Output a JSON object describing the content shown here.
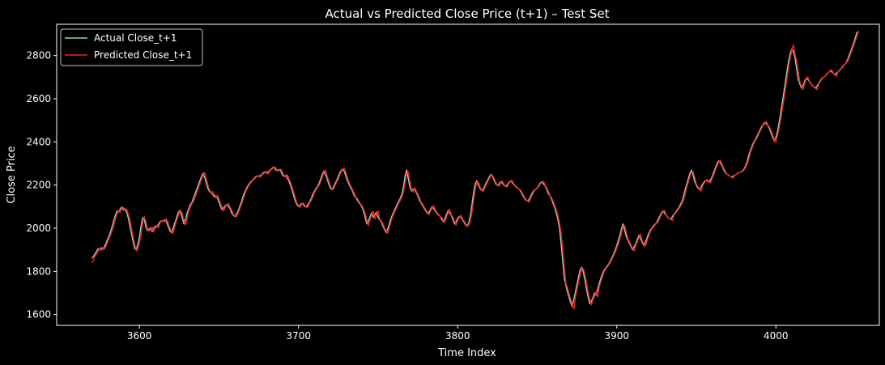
{
  "chart_data": {
    "type": "line",
    "title": "Actual vs Predicted Close Price (t+1) – Test Set",
    "xlabel": "Time Index",
    "ylabel": "Close Price",
    "xlim": [
      3548,
      4065
    ],
    "ylim": [
      1550,
      2945
    ],
    "x_ticks": [
      3600,
      3700,
      3800,
      3900,
      4000
    ],
    "y_ticks": [
      1600,
      1800,
      2000,
      2200,
      2400,
      2600,
      2800
    ],
    "x_tick_labels": [
      "3600",
      "3700",
      "3800",
      "3900",
      "4000"
    ],
    "y_tick_labels": [
      "1600",
      "1800",
      "2000",
      "2200",
      "2400",
      "2600",
      "2800"
    ],
    "grid": false,
    "legend_position": "top-left",
    "series": [
      {
        "name": "Actual Close_t+1",
        "color": "#8dd3c7",
        "x_start": 3570,
        "values": [
          1862,
          1868,
          1880,
          1892,
          1905,
          1900,
          1910,
          1902,
          1915,
          1930,
          1950,
          1965,
          1988,
          2012,
          2040,
          2062,
          2080,
          2075,
          2090,
          2098,
          2085,
          2090,
          2072,
          2048,
          2010,
          1975,
          1940,
          1905,
          1902,
          1925,
          1960,
          2010,
          2048,
          2040,
          2010,
          1990,
          1995,
          2002,
          1985,
          2000,
          2010,
          2005,
          2020,
          2030,
          2035,
          2032,
          2040,
          2030,
          2010,
          1990,
          1980,
          1995,
          2020,
          2040,
          2065,
          2080,
          2070,
          2045,
          2020,
          2040,
          2072,
          2090,
          2110,
          2120,
          2140,
          2160,
          2180,
          2200,
          2220,
          2240,
          2255,
          2235,
          2210,
          2185,
          2170,
          2165,
          2158,
          2145,
          2150,
          2140,
          2120,
          2100,
          2085,
          2095,
          2105,
          2110,
          2100,
          2090,
          2070,
          2060,
          2055,
          2065,
          2080,
          2100,
          2120,
          2145,
          2165,
          2180,
          2195,
          2205,
          2215,
          2222,
          2230,
          2238,
          2242,
          2240,
          2245,
          2250,
          2258,
          2262,
          2255,
          2262,
          2268,
          2275,
          2282,
          2278,
          2268,
          2270,
          2272,
          2262,
          2245,
          2240,
          2245,
          2232,
          2218,
          2198,
          2175,
          2150,
          2125,
          2110,
          2100,
          2108,
          2115,
          2110,
          2100,
          2098,
          2112,
          2122,
          2138,
          2158,
          2172,
          2185,
          2195,
          2210,
          2230,
          2250,
          2265,
          2248,
          2228,
          2205,
          2185,
          2178,
          2192,
          2208,
          2222,
          2240,
          2258,
          2270,
          2275,
          2258,
          2235,
          2215,
          2200,
          2185,
          2170,
          2150,
          2142,
          2130,
          2118,
          2110,
          2095,
          2075,
          2045,
          2020,
          2035,
          2055,
          2072,
          2050,
          2065,
          2075,
          2050,
          2040,
          2030,
          2010,
          1995,
          1980,
          1995,
          2020,
          2045,
          2062,
          2078,
          2095,
          2110,
          2125,
          2140,
          2160,
          2195,
          2245,
          2270,
          2228,
          2190,
          2172,
          2182,
          2178,
          2165,
          2150,
          2130,
          2118,
          2105,
          2092,
          2080,
          2068,
          2075,
          2088,
          2100,
          2090,
          2080,
          2070,
          2060,
          2055,
          2040,
          2030,
          2045,
          2065,
          2082,
          2070,
          2060,
          2040,
          2020,
          2030,
          2045,
          2055,
          2050,
          2040,
          2028,
          2015,
          2010,
          2025,
          2060,
          2110,
          2165,
          2205,
          2220,
          2200,
          2185,
          2175,
          2180,
          2195,
          2212,
          2225,
          2240,
          2250,
          2238,
          2220,
          2205,
          2198,
          2205,
          2215,
          2210,
          2200,
          2195,
          2200,
          2210,
          2218,
          2215,
          2205,
          2198,
          2188,
          2185,
          2178,
          2165,
          2150,
          2140,
          2130,
          2125,
          2135,
          2150,
          2165,
          2175,
          2180,
          2188,
          2198,
          2210,
          2215,
          2205,
          2195,
          2180,
          2160,
          2150,
          2135,
          2115,
          2095,
          2070,
          2040,
          2000,
          1930,
          1850,
          1770,
          1735,
          1705,
          1680,
          1655,
          1638,
          1670,
          1705,
          1740,
          1775,
          1808,
          1820,
          1795,
          1760,
          1715,
          1680,
          1650,
          1662,
          1678,
          1700,
          1690,
          1720,
          1745,
          1768,
          1790,
          1805,
          1815,
          1825,
          1835,
          1850,
          1865,
          1880,
          1900,
          1920,
          1945,
          1970,
          2000,
          2020,
          1990,
          1960,
          1945,
          1930,
          1915,
          1900,
          1915,
          1930,
          1950,
          1968,
          1950,
          1935,
          1920,
          1935,
          1955,
          1975,
          1990,
          2000,
          2010,
          2018,
          2025,
          2040,
          2055,
          2070,
          2080,
          2070,
          2060,
          2050,
          2045,
          2040,
          2055,
          2065,
          2075,
          2085,
          2095,
          2110,
          2125,
          2150,
          2180,
          2205,
          2230,
          2255,
          2270,
          2245,
          2215,
          2200,
          2185,
          2178,
          2190,
          2205,
          2215,
          2222,
          2218,
          2215,
          2225,
          2240,
          2262,
          2280,
          2300,
          2312,
          2305,
          2290,
          2275,
          2260,
          2252,
          2248,
          2242,
          2238,
          2240,
          2245,
          2250,
          2255,
          2258,
          2260,
          2265,
          2275,
          2290,
          2310,
          2340,
          2360,
          2380,
          2398,
          2410,
          2425,
          2440,
          2455,
          2470,
          2480,
          2490,
          2485,
          2475,
          2460,
          2440,
          2420,
          2405,
          2420,
          2450,
          2490,
          2535,
          2580,
          2630,
          2680,
          2730,
          2775,
          2810,
          2830,
          2818,
          2790,
          2740,
          2690,
          2670,
          2650,
          2660,
          2680,
          2695,
          2690,
          2680,
          2670,
          2660,
          2655,
          2650,
          2660,
          2672,
          2685,
          2695,
          2700,
          2705,
          2715,
          2722,
          2730,
          2725,
          2718,
          2712,
          2718,
          2725,
          2732,
          2740,
          2750,
          2758,
          2765,
          2780,
          2800,
          2820,
          2840,
          2860,
          2885,
          2910
        ]
      },
      {
        "name": "Predicted Close_t+1",
        "color": "#ff1a1a",
        "x_start": 3570,
        "values": [
          1840,
          1850,
          1870,
          1880,
          1893,
          1903,
          1898,
          1907,
          1902,
          1918,
          1935,
          1955,
          1970,
          1992,
          2016,
          2045,
          2068,
          2082,
          2074,
          2092,
          2096,
          2082,
          2088,
          2068,
          2040,
          2000,
          1962,
          1928,
          1895,
          1900,
          1932,
          1970,
          2022,
          2055,
          2035,
          2002,
          1985,
          1998,
          2006,
          1982,
          2004,
          2012,
          2002,
          2024,
          2034,
          2036,
          2030,
          2044,
          2026,
          2005,
          1985,
          1975,
          2000,
          2028,
          2048,
          2072,
          2085,
          2065,
          2038,
          2015,
          2045,
          2080,
          2096,
          2115,
          2124,
          2145,
          2165,
          2186,
          2205,
          2226,
          2245,
          2258,
          2230,
          2202,
          2178,
          2166,
          2170,
          2160,
          2140,
          2154,
          2138,
          2115,
          2095,
          2080,
          2100,
          2110,
          2114,
          2096,
          2085,
          2064,
          2058,
          2052,
          2070,
          2088,
          2108,
          2128,
          2152,
          2172,
          2186,
          2200,
          2210,
          2220,
          2226,
          2234,
          2240,
          2245,
          2236,
          2248,
          2252,
          2262,
          2264,
          2250,
          2266,
          2272,
          2278,
          2285,
          2275,
          2264,
          2272,
          2274,
          2258,
          2240,
          2238,
          2248,
          2228,
          2212,
          2190,
          2166,
          2140,
          2118,
          2104,
          2096,
          2112,
          2118,
          2106,
          2095,
          2100,
          2118,
          2128,
          2145,
          2165,
          2178,
          2190,
          2200,
          2216,
          2238,
          2258,
          2270,
          2240,
          2220,
          2196,
          2180,
          2182,
          2198,
          2214,
          2228,
          2248,
          2264,
          2275,
          2278,
          2250,
          2228,
          2208,
          2194,
          2178,
          2162,
          2144,
          2138,
          2125,
          2112,
          2104,
          2088,
          2066,
          2035,
          2012,
          2042,
          2062,
          2078,
          2042,
          2070,
          2080,
          2044,
          2034,
          2022,
          2002,
          1988,
          1975,
          2002,
          2028,
          2052,
          2068,
          2085,
          2100,
          2116,
          2130,
          2146,
          2170,
          2208,
          2255,
          2262,
          2215,
          2180,
          2168,
          2188,
          2172,
          2158,
          2142,
          2122,
          2112,
          2098,
          2086,
          2074,
          2062,
          2080,
          2094,
          2104,
          2084,
          2074,
          2064,
          2054,
          2050,
          2034,
          2026,
          2052,
          2072,
          2088,
          2062,
          2052,
          2032,
          2014,
          2036,
          2050,
          2060,
          2044,
          2034,
          2022,
          2008,
          2016,
          2035,
          2075,
          2125,
          2178,
          2212,
          2214,
          2192,
          2178,
          2170,
          2186,
          2202,
          2218,
          2230,
          2246,
          2244,
          2230,
          2212,
          2200,
          2194,
          2210,
          2220,
          2204,
          2194,
          2190,
          2206,
          2215,
          2222,
          2210,
          2200,
          2192,
          2182,
          2180,
          2172,
          2158,
          2144,
          2134,
          2124,
          2120,
          2140,
          2156,
          2170,
          2180,
          2185,
          2194,
          2204,
          2216,
          2218,
          2198,
          2188,
          2172,
          2152,
          2142,
          2126,
          2106,
          2086,
          2060,
          2025,
          1980,
          1905,
          1820,
          1745,
          1725,
          1698,
          1675,
          1650,
          1625,
          1678,
          1715,
          1752,
          1786,
          1815,
          1812,
          1785,
          1748,
          1705,
          1672,
          1645,
          1668,
          1685,
          1706,
          1682,
          1728,
          1752,
          1775,
          1798,
          1810,
          1820,
          1830,
          1842,
          1858,
          1872,
          1888,
          1908,
          1928,
          1952,
          1978,
          2008,
          2012,
          1982,
          1952,
          1938,
          1922,
          1908,
          1895,
          1922,
          1938,
          1958,
          1972,
          1942,
          1928,
          1915,
          1942,
          1962,
          1982,
          1996,
          2005,
          2014,
          2022,
          2030,
          2046,
          2062,
          2076,
          2084,
          2062,
          2052,
          2044,
          2040,
          2035,
          2062,
          2070,
          2080,
          2090,
          2100,
          2116,
          2132,
          2158,
          2190,
          2215,
          2240,
          2262,
          2262,
          2235,
          2205,
          2194,
          2178,
          2172,
          2196,
          2210,
          2220,
          2226,
          2212,
          2210,
          2232,
          2248,
          2270,
          2288,
          2306,
          2316,
          2298,
          2282,
          2268,
          2254,
          2246,
          2244,
          2236,
          2232,
          2244,
          2250,
          2254,
          2258,
          2262,
          2262,
          2270,
          2282,
          2298,
          2320,
          2350,
          2370,
          2390,
          2405,
          2416,
          2432,
          2448,
          2462,
          2476,
          2484,
          2496,
          2478,
          2468,
          2452,
          2432,
          2412,
          2398,
          2430,
          2462,
          2502,
          2548,
          2595,
          2645,
          2695,
          2745,
          2790,
          2822,
          2850,
          2806,
          2780,
          2728,
          2680,
          2660,
          2642,
          2668,
          2690,
          2702,
          2682,
          2672,
          2662,
          2652,
          2648,
          2642,
          2668,
          2680,
          2692,
          2700,
          2706,
          2712,
          2722,
          2728,
          2736,
          2718,
          2710,
          2704,
          2724,
          2730,
          2738,
          2746,
          2756,
          2764,
          2772,
          2788,
          2808,
          2828,
          2848,
          2868,
          2892,
          2915
        ]
      }
    ]
  }
}
